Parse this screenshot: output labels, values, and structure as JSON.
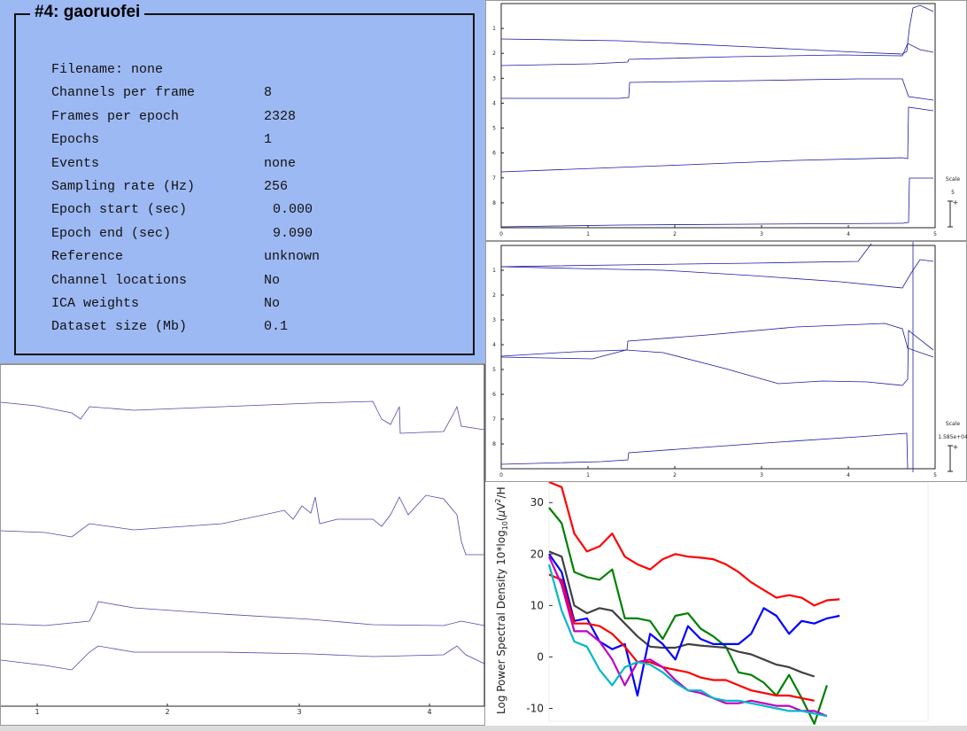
{
  "dataset": {
    "title": "#4: gaoruofei",
    "fields": [
      {
        "label": "Filename: none",
        "value": ""
      },
      {
        "label": "Channels per frame",
        "value": "8"
      },
      {
        "label": "Frames per epoch",
        "value": "2328"
      },
      {
        "label": "Epochs",
        "value": "1"
      },
      {
        "label": "Events",
        "value": "none"
      },
      {
        "label": "Sampling rate (Hz)",
        "value": "256"
      },
      {
        "label": "Epoch start (sec)",
        "value": "0.000"
      },
      {
        "label": "Epoch end (sec)",
        "value": "9.090"
      },
      {
        "label": "Reference",
        "value": "unknown"
      },
      {
        "label": "Channel locations",
        "value": "No"
      },
      {
        "label": "ICA weights",
        "value": "No"
      },
      {
        "label": "Dataset size (Mb)",
        "value": "0.1"
      }
    ]
  },
  "scroll_top": {
    "channels": [
      "1",
      "2",
      "3",
      "4",
      "5",
      "6",
      "7",
      "8"
    ],
    "xticks": [
      "0",
      "1",
      "2",
      "3",
      "4",
      "5"
    ],
    "scale_label": "Scale",
    "scale_value": "5",
    "scale_plus": "+"
  },
  "scroll_mid": {
    "channels": [
      "1",
      "2",
      "3",
      "4",
      "5",
      "6",
      "7",
      "8"
    ],
    "xticks": [
      "0",
      "1",
      "2",
      "3",
      "4",
      "5"
    ],
    "scale_label": "Scale",
    "scale_value": "1.585e+04",
    "scale_plus": "+"
  },
  "scroll_bottom": {
    "xticks": [
      "1",
      "2",
      "3",
      "4"
    ]
  },
  "chart_data": {
    "type": "line",
    "ylabel": "Log Power Spectral Density 10*log10(μV²/H",
    "ylabel_parts": [
      "Log Power Spectral Density 10*log",
      "10",
      "(",
      "μ",
      "V",
      "2",
      "/H"
    ],
    "yticks": [
      "30",
      "20",
      "10",
      "0",
      "-10"
    ],
    "ylim": [
      -12.5,
      34
    ],
    "x": [
      1,
      2,
      3,
      4,
      5,
      6,
      7,
      8,
      9,
      10,
      11,
      12,
      13,
      14,
      15,
      16,
      17,
      18,
      19,
      20,
      21,
      22,
      23,
      24,
      25,
      26,
      27,
      28,
      29,
      30,
      31
    ],
    "series": [
      {
        "color": "#ff0000",
        "values": [
          34,
          33,
          24,
          20.5,
          21.5,
          24,
          19.5,
          18,
          17,
          19,
          20,
          19.5,
          19.3,
          19,
          18,
          16.5,
          14.5,
          13,
          11.5,
          12,
          11.5,
          10,
          11,
          11.2,
          null,
          null,
          null,
          null,
          null,
          null,
          null
        ]
      },
      {
        "color": "#008000",
        "values": [
          29,
          26,
          16.5,
          15.5,
          15,
          17,
          7.5,
          7.5,
          7,
          3.5,
          8,
          8.5,
          5.5,
          4,
          2,
          -3,
          -3.5,
          -5,
          -7.5,
          -3.5,
          -8,
          -13,
          -5.5,
          null,
          null,
          null,
          null,
          null,
          null,
          null,
          null
        ]
      },
      {
        "color": "#404040",
        "values": [
          20.5,
          19.5,
          10,
          8.5,
          9.5,
          9,
          6.5,
          4,
          2,
          1.8,
          1.8,
          2.5,
          2.2,
          2,
          1.8,
          1,
          0.5,
          -0.5,
          -1.5,
          -2,
          -3,
          -3.8,
          null,
          null,
          null,
          null,
          null,
          null,
          null,
          null,
          null
        ]
      },
      {
        "color": "#0000ff",
        "values": [
          20,
          16.5,
          7,
          7.5,
          3,
          1.5,
          2.5,
          -7.5,
          4.5,
          2.5,
          -0.5,
          6,
          3.5,
          2.5,
          2.5,
          2.5,
          4.5,
          9.5,
          8,
          4.5,
          7,
          6.5,
          7.5,
          8,
          null,
          null,
          null,
          null,
          null,
          null,
          null
        ]
      },
      {
        "color": "#ff0000",
        "values": [
          16,
          15,
          6.5,
          6.5,
          6,
          4.5,
          2,
          -1,
          -1,
          -2,
          -2.5,
          -3,
          -4,
          -4.5,
          -4.5,
          -5.5,
          -6.5,
          -7,
          -7.5,
          -7.5,
          -8,
          -8.5,
          null,
          null,
          null,
          null,
          null,
          null,
          null,
          null,
          null
        ]
      },
      {
        "color": "#c000c0",
        "values": [
          19.5,
          14,
          5,
          5,
          3,
          -0.5,
          -5.5,
          -1,
          -0.5,
          -2,
          -4.5,
          -6.5,
          -7,
          -8,
          -9,
          -9,
          -8.5,
          -9,
          -9.5,
          -9.5,
          -10.5,
          -10.5,
          -11.5,
          null,
          null,
          null,
          null,
          null,
          null,
          null,
          null
        ]
      },
      {
        "color": "#00b8c8",
        "values": [
          18,
          9,
          3,
          2,
          -2.5,
          -5.5,
          -2,
          -1,
          -1.5,
          -3,
          -5,
          -6.5,
          -6.5,
          -8,
          -8.5,
          -8.5,
          -9,
          -9.5,
          -10,
          -10.5,
          -10.5,
          -11,
          -11.5,
          null,
          null,
          null,
          null,
          null,
          null,
          null,
          null
        ]
      }
    ]
  }
}
